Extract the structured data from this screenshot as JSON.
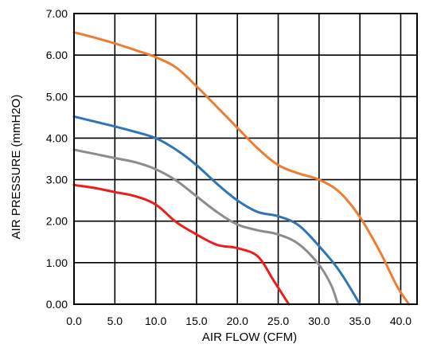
{
  "chart_data": {
    "type": "line",
    "title": "",
    "xlabel": "AIR FLOW  (CFM)",
    "ylabel": "AIR PRESSURE  (mmH2O)",
    "xlim": [
      0,
      42
    ],
    "ylim": [
      0,
      7
    ],
    "grid": true,
    "x_ticks": [
      "0.0",
      "5.0",
      "10.0",
      "15.0",
      "20.0",
      "25.0",
      "30.0",
      "35.0",
      "40.0"
    ],
    "x_tick_values": [
      0,
      5,
      10,
      15,
      20,
      25,
      30,
      35,
      40
    ],
    "y_ticks": [
      "0.00",
      "1.00",
      "2.00",
      "3.00",
      "4.00",
      "5.00",
      "6.00",
      "7.00"
    ],
    "y_tick_values": [
      0,
      1,
      2,
      3,
      4,
      5,
      6,
      7
    ],
    "series": [
      {
        "color": "#ed7d31",
        "points": [
          [
            0,
            6.55
          ],
          [
            2.5,
            6.42
          ],
          [
            5,
            6.28
          ],
          [
            7.5,
            6.12
          ],
          [
            10,
            5.95
          ],
          [
            12.5,
            5.7
          ],
          [
            15,
            5.25
          ],
          [
            17.5,
            4.75
          ],
          [
            20,
            4.25
          ],
          [
            22.5,
            3.75
          ],
          [
            25,
            3.35
          ],
          [
            27.5,
            3.15
          ],
          [
            30,
            3.0
          ],
          [
            32.5,
            2.7
          ],
          [
            35,
            2.1
          ],
          [
            37.5,
            1.25
          ],
          [
            39.5,
            0.45
          ],
          [
            41,
            0
          ]
        ]
      },
      {
        "color": "#2e75b6",
        "points": [
          [
            0,
            4.52
          ],
          [
            2.5,
            4.4
          ],
          [
            5,
            4.28
          ],
          [
            7.5,
            4.15
          ],
          [
            10,
            4.0
          ],
          [
            12.5,
            3.72
          ],
          [
            15,
            3.35
          ],
          [
            17.5,
            2.9
          ],
          [
            20,
            2.5
          ],
          [
            22.5,
            2.22
          ],
          [
            25,
            2.12
          ],
          [
            27.5,
            1.9
          ],
          [
            30,
            1.4
          ],
          [
            32.5,
            0.8
          ],
          [
            35,
            0
          ]
        ]
      },
      {
        "color": "#8c8c8c",
        "points": [
          [
            0,
            3.72
          ],
          [
            2.5,
            3.62
          ],
          [
            5,
            3.52
          ],
          [
            7.5,
            3.42
          ],
          [
            10,
            3.25
          ],
          [
            12.5,
            2.98
          ],
          [
            15,
            2.6
          ],
          [
            17.5,
            2.22
          ],
          [
            20,
            1.92
          ],
          [
            22.5,
            1.78
          ],
          [
            25,
            1.68
          ],
          [
            27.5,
            1.45
          ],
          [
            30,
            0.95
          ],
          [
            31.5,
            0.45
          ],
          [
            32.3,
            0
          ]
        ]
      },
      {
        "color": "#ee1c1c",
        "points": [
          [
            0,
            2.87
          ],
          [
            2.5,
            2.8
          ],
          [
            5,
            2.7
          ],
          [
            7.5,
            2.6
          ],
          [
            10,
            2.4
          ],
          [
            12.5,
            1.98
          ],
          [
            15,
            1.68
          ],
          [
            17.5,
            1.43
          ],
          [
            20,
            1.35
          ],
          [
            22.5,
            1.15
          ],
          [
            24.5,
            0.55
          ],
          [
            26.3,
            0
          ]
        ]
      }
    ]
  }
}
